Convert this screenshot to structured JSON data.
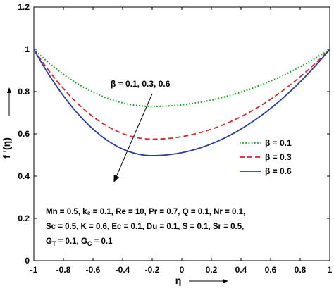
{
  "chart_data": {
    "type": "line",
    "xlabel": "η",
    "ylabel": "f '(η)",
    "xlim": [
      -1,
      1
    ],
    "ylim": [
      0,
      1.2
    ],
    "xticks": [
      "-1",
      "-0.8",
      "-0.6",
      "-0.4",
      "-0.2",
      "0",
      "0.2",
      "0.4",
      "0.6",
      "0.8",
      "1"
    ],
    "yticks": [
      "0",
      "0.2",
      "0.4",
      "0.6",
      "0.8",
      "1",
      "1.2"
    ],
    "grid": false,
    "legend_position": "right",
    "series": [
      {
        "name": "β = 0.1",
        "color": "#22a02a",
        "dash": "dotted",
        "min_x": -0.2,
        "min_y": 0.73,
        "x": [
          -1,
          -0.8,
          -0.6,
          -0.4,
          -0.2,
          0,
          0.2,
          0.4,
          0.6,
          0.8,
          1
        ],
        "y": [
          1,
          0.886,
          0.807,
          0.754,
          0.73,
          0.736,
          0.773,
          0.83,
          0.89,
          0.949,
          1
        ]
      },
      {
        "name": "β = 0.3",
        "color": "#d9262a",
        "dash": "dashed",
        "min_x": -0.2,
        "min_y": 0.575,
        "x": [
          -1,
          -0.8,
          -0.6,
          -0.4,
          -0.2,
          0,
          0.2,
          0.4,
          0.6,
          0.8,
          1
        ],
        "y": [
          1,
          0.815,
          0.683,
          0.604,
          0.575,
          0.585,
          0.64,
          0.73,
          0.83,
          0.92,
          1
        ]
      },
      {
        "name": "β = 0.6",
        "color": "#2a3d9c",
        "dash": "solid",
        "min_x": -0.2,
        "min_y": 0.497,
        "x": [
          -1,
          -0.8,
          -0.6,
          -0.4,
          -0.2,
          0,
          0.2,
          0.4,
          0.6,
          0.8,
          1
        ],
        "y": [
          1,
          0.763,
          0.604,
          0.522,
          0.497,
          0.512,
          0.577,
          0.682,
          0.797,
          0.9,
          1
        ]
      }
    ],
    "annotation": {
      "label": "β = 0.1, 0.3, 0.6",
      "arrow_from": [
        -0.2,
        0.79
      ],
      "arrow_to": [
        -0.46,
        0.37
      ]
    },
    "parameters": [
      "Mn = 0.5, k₂ = 0.1, Re = 10, Pr = 0.7, Q = 0.1, Nr = 0.1,",
      "Sc = 0.5, K = 0.6, Ec = 0.1, Du = 0.1, S = 0.1, Sr = 0.5,",
      "G_T = 0.1, G_C = 0.1"
    ],
    "param_line3_parts": {
      "gt_sub": "T",
      "gc_sub": "C",
      "gt_main": "G",
      "gc_main": "G",
      "val": " = 0.1, "
    }
  }
}
